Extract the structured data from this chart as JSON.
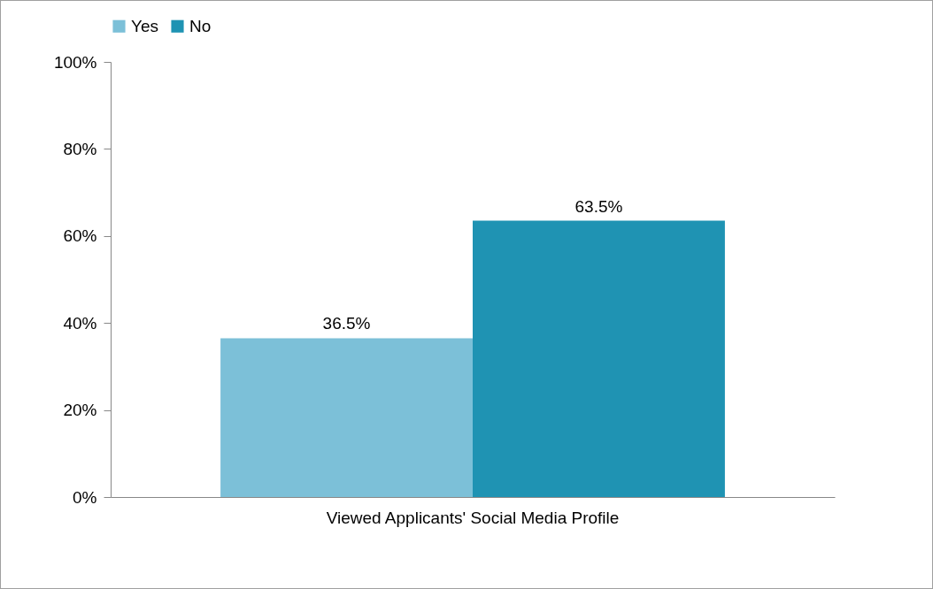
{
  "chart_data": {
    "type": "bar",
    "categories": [
      "Viewed Applicants' Social Media Profile"
    ],
    "series": [
      {
        "name": "Yes",
        "color": "#7cc0d8",
        "values": [
          36.5
        ],
        "value_labels": [
          "36.5%"
        ]
      },
      {
        "name": "No",
        "color": "#1f93b3",
        "values": [
          63.5
        ],
        "value_labels": [
          "63.5%"
        ]
      }
    ],
    "ylim": [
      0,
      100
    ],
    "yticks": [
      {
        "value": 0,
        "label": "0%"
      },
      {
        "value": 20,
        "label": "20%"
      },
      {
        "value": 40,
        "label": "40%"
      },
      {
        "value": 60,
        "label": "60%"
      },
      {
        "value": 80,
        "label": "80%"
      },
      {
        "value": 100,
        "label": "100%"
      }
    ],
    "legend": "top",
    "grid": false
  }
}
